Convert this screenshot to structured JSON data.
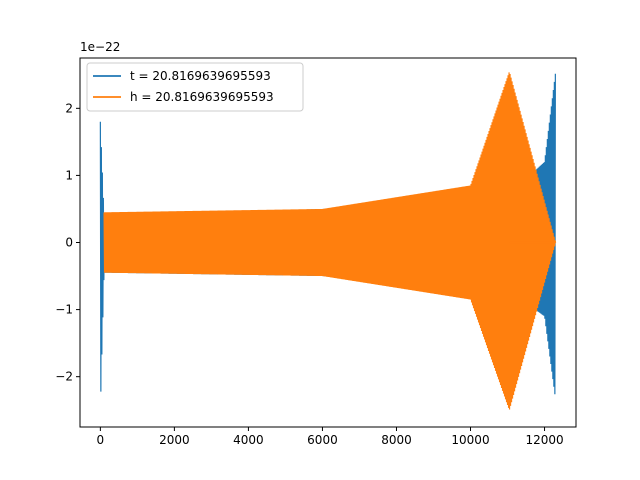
{
  "chart_data": {
    "type": "line",
    "title": "",
    "xlabel": "",
    "ylabel": "",
    "offset_text": "1e−22",
    "xlim": [
      -550,
      12850
    ],
    "ylim": [
      -2.75,
      2.75
    ],
    "x_ticks": [
      0,
      2000,
      4000,
      6000,
      8000,
      10000,
      12000
    ],
    "x_tick_labels": [
      "0",
      "2000",
      "4000",
      "6000",
      "8000",
      "10000",
      "12000"
    ],
    "y_ticks": [
      -2,
      -1,
      0,
      1,
      2
    ],
    "y_tick_labels": [
      "−2",
      "−1",
      "0",
      "1",
      "2"
    ],
    "grid": false,
    "legend_position": "upper-left",
    "series": [
      {
        "name": "t = 20.8169639695593",
        "color": "#1f77b4",
        "description_points": [
          {
            "x": 0,
            "y_min": -2.5,
            "y_max": 1.8
          },
          {
            "x": 100,
            "y_min": -0.45,
            "y_max": 0.4
          },
          {
            "x": 6000,
            "y_min": -0.5,
            "y_max": 0.5
          },
          {
            "x": 11000,
            "y_min": -0.7,
            "y_max": 0.7
          },
          {
            "x": 12000,
            "y_min": -1.1,
            "y_max": 1.2
          },
          {
            "x": 12300,
            "y_min": -2.35,
            "y_max": 2.55
          }
        ]
      },
      {
        "name": "h = 20.8169639695593",
        "color": "#ff7f0e",
        "description_points": [
          {
            "x": 100,
            "y_min": -0.45,
            "y_max": 0.45
          },
          {
            "x": 6000,
            "y_min": -0.5,
            "y_max": 0.5
          },
          {
            "x": 10000,
            "y_min": -0.85,
            "y_max": 0.85
          },
          {
            "x": 11050,
            "y_min": -2.5,
            "y_max": 2.55
          },
          {
            "x": 12300,
            "y_min": 0,
            "y_max": 0
          }
        ]
      }
    ]
  }
}
